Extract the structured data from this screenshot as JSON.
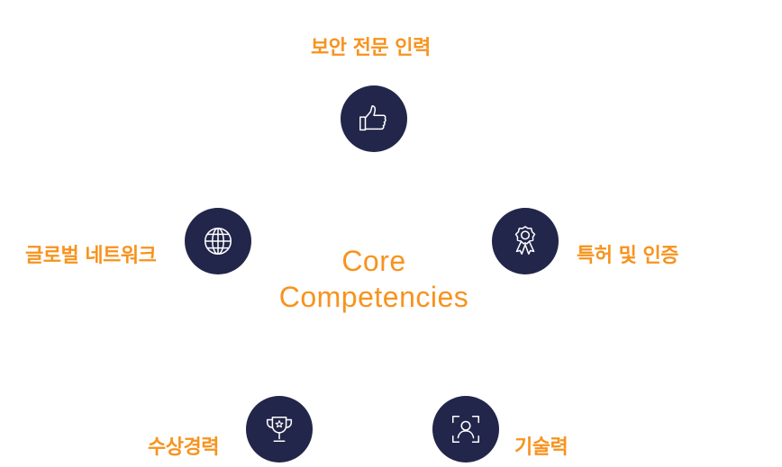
{
  "center": {
    "line1": "Core",
    "line2": "Competencies"
  },
  "competencies": [
    {
      "label": "보안 전문 인력",
      "icon": "thumbs-up-icon"
    },
    {
      "label": "특허 및 인증",
      "icon": "award-ribbon-icon"
    },
    {
      "label": "기술력",
      "icon": "face-scan-icon"
    },
    {
      "label": "수상경력",
      "icon": "trophy-icon"
    },
    {
      "label": "글로벌 네트워크",
      "icon": "globe-icon"
    }
  ],
  "colors": {
    "accent": "#f7931e",
    "node_fill": "#22264a",
    "icon_stroke": "#ffffff"
  }
}
